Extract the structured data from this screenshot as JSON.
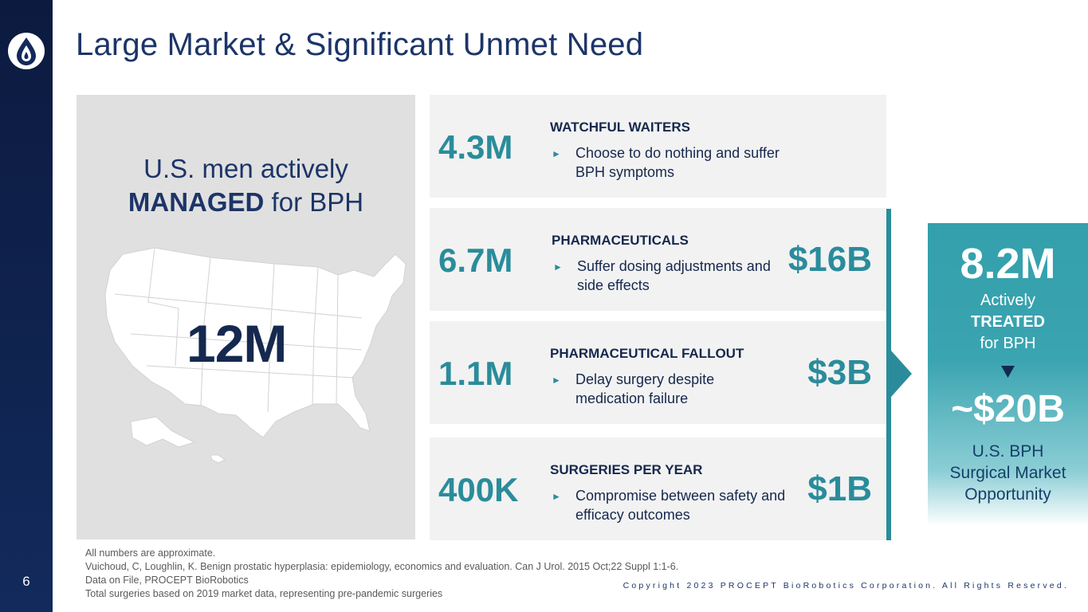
{
  "slide": {
    "title": "Large Market & Significant Unmet Need",
    "page_number": "6"
  },
  "left_panel": {
    "heading_line1": "U.S. men actively",
    "heading_emphasis": "MANAGED",
    "heading_rest": " for BPH",
    "total": "12M"
  },
  "segments": [
    {
      "count": "4.3M",
      "heading": "WATCHFUL WAITERS",
      "description": "Choose to do nothing and suffer BPH symptoms",
      "market": ""
    },
    {
      "count": "6.7M",
      "heading": "PHARMACEUTICALS",
      "description": "Suffer dosing adjustments and side effects",
      "market": "$16B"
    },
    {
      "count": "1.1M",
      "heading": "PHARMACEUTICAL FALLOUT",
      "description": "Delay surgery despite medication failure",
      "market": "$3B"
    },
    {
      "count": "400K",
      "heading": "SURGERIES PER YEAR",
      "description": "Compromise between safety and efficacy outcomes",
      "market": "$1B"
    }
  ],
  "bullet_glyph": "►",
  "summary": {
    "treated_count": "8.2M",
    "line1": "Actively",
    "line2": "TREATED",
    "line3": "for BPH",
    "market_value": "~$20B",
    "sub1": "U.S. BPH",
    "sub2": "Surgical Market",
    "sub3": "Opportunity"
  },
  "footnotes": [
    "All numbers are  approximate.",
    "Vuichoud, C, Loughlin, K. Benign prostatic hyperplasia: epidemiology, economics and evaluation. Can J Urol. 2015 Oct;22 Suppl 1:1-6.",
    "Data on File, PROCEPT BioRobotics",
    "Total surgeries based on 2019 market data, representing pre-pandemic surgeries"
  ],
  "copyright": "Copyright 2023 PROCEPT BioRobotics Corporation. All Rights Reserved.",
  "colors": {
    "navy": "#1c3568",
    "teal": "#2a8c9b",
    "panel_gray": "#e0e0e0",
    "row_gray": "#f2f2f2"
  }
}
